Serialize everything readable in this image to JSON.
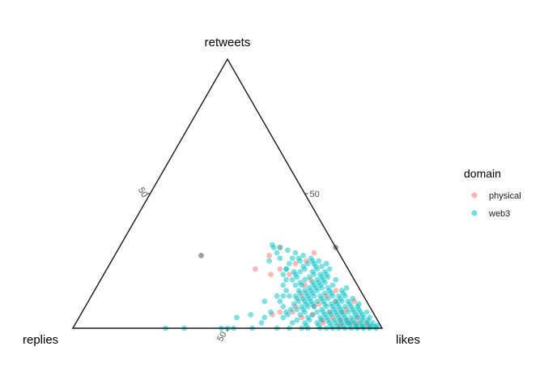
{
  "chart_data": {
    "type": "scatter",
    "subtype": "ternary",
    "vertices": {
      "top": "retweets",
      "left": "replies",
      "right": "likes"
    },
    "axis_ticks": {
      "retweets": [
        50
      ],
      "replies": [
        50
      ],
      "likes": [
        50
      ]
    },
    "tick_labels": {
      "retweets": "50",
      "replies": "50",
      "likes": "50"
    },
    "grid": false,
    "legend": {
      "title": "domain",
      "placement": "right",
      "entries": [
        {
          "name": "physical",
          "color": "#F8766D"
        },
        {
          "name": "web3",
          "color": "#00BFC4"
        }
      ]
    },
    "point_alpha": 0.5,
    "series": [
      {
        "name": "physical",
        "color": "#F8766D",
        "points": [
          [
            20,
            26,
            54
          ],
          [
            22,
            30,
            48
          ],
          [
            25,
            12,
            63
          ],
          [
            28,
            8,
            64
          ],
          [
            30,
            18,
            52
          ],
          [
            22,
            22,
            56
          ],
          [
            18,
            14,
            68
          ],
          [
            16,
            17,
            67
          ],
          [
            20,
            20,
            60
          ],
          [
            12,
            12,
            76
          ],
          [
            14,
            8,
            78
          ],
          [
            10,
            10,
            80
          ],
          [
            6,
            30,
            64
          ],
          [
            5,
            33,
            62
          ],
          [
            8,
            18,
            74
          ],
          [
            5,
            20,
            75
          ],
          [
            4,
            14,
            82
          ],
          [
            3,
            10,
            87
          ],
          [
            7,
            8,
            85
          ],
          [
            4,
            6,
            90
          ],
          [
            2,
            18,
            80
          ],
          [
            10,
            4,
            86
          ],
          [
            6,
            14,
            80
          ],
          [
            2,
            9,
            89
          ],
          [
            12,
            20,
            68
          ],
          [
            8,
            24,
            68
          ],
          [
            6,
            26,
            68
          ],
          [
            3,
            12,
            85
          ],
          [
            2,
            7,
            91
          ],
          [
            1,
            4,
            95
          ],
          [
            4,
            24,
            72
          ],
          [
            3,
            18,
            79
          ],
          [
            1,
            13,
            86
          ],
          [
            2,
            4,
            94
          ],
          [
            6,
            10,
            84
          ],
          [
            9,
            16,
            75
          ],
          [
            27,
            23,
            50
          ],
          [
            24,
            16,
            60
          ]
        ]
      },
      {
        "name": "web3",
        "color": "#00BFC4",
        "points": [
          [
            0,
            70,
            30
          ],
          [
            0,
            64,
            36
          ],
          [
            0,
            52,
            48
          ],
          [
            0,
            48,
            52
          ],
          [
            0,
            50,
            50
          ],
          [
            0,
            42,
            58
          ],
          [
            2,
            38,
            60
          ],
          [
            4,
            36,
            60
          ],
          [
            5,
            40,
            55
          ],
          [
            4,
            45,
            51
          ],
          [
            6,
            33,
            61
          ],
          [
            10,
            33,
            57
          ],
          [
            22,
            20,
            58
          ],
          [
            26,
            20,
            54
          ],
          [
            18,
            20,
            62
          ],
          [
            20,
            18,
            62
          ],
          [
            28,
            20,
            52
          ],
          [
            25,
            24,
            51
          ],
          [
            30,
            20,
            50
          ],
          [
            30,
            18,
            52
          ],
          [
            26,
            16,
            58
          ],
          [
            22,
            14,
            64
          ],
          [
            16,
            14,
            70
          ],
          [
            18,
            12,
            70
          ],
          [
            20,
            10,
            70
          ],
          [
            24,
            12,
            64
          ],
          [
            25,
            8,
            67
          ],
          [
            14,
            10,
            76
          ],
          [
            14,
            18,
            68
          ],
          [
            11,
            20,
            69
          ],
          [
            12,
            24,
            64
          ],
          [
            10,
            16,
            74
          ],
          [
            8,
            28,
            64
          ],
          [
            10,
            28,
            62
          ],
          [
            12,
            28,
            60
          ],
          [
            6,
            28,
            66
          ],
          [
            4,
            30,
            66
          ],
          [
            3,
            26,
            71
          ],
          [
            3,
            22,
            75
          ],
          [
            2,
            20,
            78
          ],
          [
            2,
            16,
            82
          ],
          [
            4,
            18,
            78
          ],
          [
            5,
            16,
            79
          ],
          [
            6,
            14,
            80
          ],
          [
            8,
            12,
            80
          ],
          [
            10,
            10,
            80
          ],
          [
            12,
            8,
            80
          ],
          [
            14,
            6,
            80
          ],
          [
            6,
            10,
            84
          ],
          [
            4,
            12,
            84
          ],
          [
            3,
            14,
            83
          ],
          [
            2,
            12,
            86
          ],
          [
            1,
            10,
            89
          ],
          [
            1,
            6,
            93
          ],
          [
            1,
            3,
            96
          ],
          [
            2,
            4,
            94
          ],
          [
            3,
            5,
            92
          ],
          [
            3,
            8,
            89
          ],
          [
            4,
            8,
            88
          ],
          [
            5,
            6,
            89
          ],
          [
            6,
            6,
            88
          ],
          [
            7,
            4,
            89
          ],
          [
            8,
            4,
            88
          ],
          [
            9,
            3,
            88
          ],
          [
            6,
            2,
            92
          ],
          [
            4,
            2,
            94
          ],
          [
            2,
            2,
            96
          ],
          [
            1,
            1,
            98
          ],
          [
            0.5,
            2,
            97.5
          ],
          [
            0.5,
            4,
            95.5
          ],
          [
            0.5,
            6,
            93.5
          ],
          [
            0.5,
            8,
            91.5
          ],
          [
            1,
            8,
            91
          ],
          [
            1,
            12,
            87
          ],
          [
            2,
            8,
            90
          ],
          [
            2,
            6,
            92
          ],
          [
            3,
            3,
            94
          ],
          [
            4,
            4,
            92
          ],
          [
            5,
            4,
            91
          ],
          [
            6,
            4,
            90
          ],
          [
            7,
            6,
            87
          ],
          [
            8,
            6,
            86
          ],
          [
            9,
            6,
            85
          ],
          [
            10,
            6,
            84
          ],
          [
            11,
            8,
            81
          ],
          [
            12,
            10,
            78
          ],
          [
            13,
            12,
            75
          ],
          [
            9,
            10,
            81
          ],
          [
            8,
            10,
            82
          ],
          [
            7,
            10,
            83
          ],
          [
            5,
            10,
            85
          ],
          [
            4,
            10,
            86
          ],
          [
            3,
            10,
            87
          ],
          [
            2,
            10,
            88
          ],
          [
            6,
            12,
            82
          ],
          [
            7,
            12,
            81
          ],
          [
            8,
            14,
            78
          ],
          [
            9,
            14,
            77
          ],
          [
            10,
            14,
            76
          ],
          [
            11,
            14,
            75
          ],
          [
            12,
            14,
            74
          ],
          [
            7,
            16,
            77
          ],
          [
            8,
            18,
            74
          ],
          [
            9,
            18,
            73
          ],
          [
            10,
            20,
            70
          ],
          [
            6,
            18,
            76
          ],
          [
            5,
            20,
            75
          ],
          [
            6,
            22,
            72
          ],
          [
            7,
            22,
            71
          ],
          [
            8,
            22,
            70
          ],
          [
            9,
            24,
            67
          ],
          [
            4,
            22,
            74
          ],
          [
            5,
            24,
            71
          ],
          [
            7,
            24,
            69
          ],
          [
            3,
            18,
            79
          ],
          [
            4,
            16,
            80
          ],
          [
            2,
            14,
            84
          ],
          [
            3,
            16,
            81
          ],
          [
            5,
            14,
            81
          ],
          [
            6,
            16,
            78
          ],
          [
            16,
            18,
            66
          ],
          [
            18,
            16,
            66
          ],
          [
            16,
            20,
            64
          ],
          [
            14,
            20,
            66
          ],
          [
            15,
            16,
            69
          ],
          [
            17,
            14,
            69
          ],
          [
            19,
            14,
            67
          ],
          [
            21,
            16,
            63
          ],
          [
            12,
            16,
            72
          ],
          [
            13,
            18,
            69
          ],
          [
            15,
            12,
            73
          ],
          [
            17,
            10,
            73
          ],
          [
            19,
            8,
            73
          ],
          [
            16,
            8,
            76
          ],
          [
            13,
            6,
            81
          ],
          [
            11,
            4,
            85
          ],
          [
            15,
            4,
            81
          ],
          [
            18,
            6,
            76
          ],
          [
            22,
            6,
            72
          ],
          [
            24,
            6,
            70
          ],
          [
            20,
            8,
            72
          ],
          [
            23,
            10,
            67
          ],
          [
            21,
            12,
            67
          ],
          [
            0,
            20,
            80
          ],
          [
            0,
            16,
            84
          ],
          [
            0,
            30,
            70
          ],
          [
            0,
            34,
            66
          ],
          [
            0,
            26,
            74
          ],
          [
            0,
            24,
            76
          ],
          [
            0,
            12,
            88
          ],
          [
            0,
            10,
            90
          ],
          [
            0,
            8,
            92
          ],
          [
            0,
            6,
            94
          ],
          [
            0,
            4,
            96
          ],
          [
            0,
            2,
            98
          ],
          [
            0,
            14,
            86
          ],
          [
            0,
            18,
            82
          ],
          [
            1,
            16,
            83
          ],
          [
            1,
            20,
            79
          ],
          [
            2,
            24,
            74
          ],
          [
            2,
            28,
            70
          ],
          [
            1,
            24,
            75
          ],
          [
            5,
            28,
            67
          ],
          [
            7,
            26,
            67
          ],
          [
            8,
            20,
            72
          ],
          [
            9,
            20,
            71
          ],
          [
            10,
            22,
            68
          ],
          [
            11,
            22,
            67
          ],
          [
            12,
            22,
            66
          ],
          [
            13,
            20,
            67
          ],
          [
            14,
            14,
            72
          ],
          [
            15,
            14,
            71
          ],
          [
            16,
            12,
            72
          ],
          [
            18,
            10,
            72
          ],
          [
            20,
            12,
            68
          ],
          [
            22,
            10,
            68
          ],
          [
            24,
            10,
            66
          ],
          [
            26,
            10,
            64
          ],
          [
            27,
            12,
            61
          ],
          [
            25,
            14,
            61
          ],
          [
            23,
            14,
            63
          ],
          [
            21,
            18,
            61
          ],
          [
            19,
            18,
            63
          ],
          [
            17,
            18,
            65
          ],
          [
            13,
            16,
            71
          ],
          [
            11,
            18,
            71
          ],
          [
            10,
            18,
            72
          ],
          [
            12,
            18,
            70
          ],
          [
            14,
            16,
            70
          ],
          [
            6,
            8,
            86
          ],
          [
            8,
            8,
            84
          ],
          [
            10,
            8,
            82
          ],
          [
            12,
            6,
            82
          ],
          [
            4,
            6,
            90
          ],
          [
            2,
            10,
            88
          ],
          [
            3,
            12,
            85
          ],
          [
            1,
            14,
            85
          ],
          [
            5,
            12,
            83
          ],
          [
            9,
            12,
            79
          ],
          [
            11,
            12,
            77
          ],
          [
            13,
            10,
            77
          ],
          [
            15,
            10,
            75
          ],
          [
            17,
            12,
            71
          ],
          [
            19,
            10,
            71
          ],
          [
            21,
            8,
            71
          ],
          [
            23,
            8,
            69
          ],
          [
            25,
            10,
            65
          ],
          [
            26,
            14,
            60
          ],
          [
            28,
            14,
            58
          ],
          [
            29,
            16,
            55
          ],
          [
            31,
            20,
            49
          ],
          [
            24,
            18,
            58
          ],
          [
            22,
            20,
            58
          ],
          [
            20,
            22,
            58
          ],
          [
            18,
            22,
            60
          ],
          [
            16,
            24,
            60
          ],
          [
            14,
            24,
            62
          ],
          [
            12,
            26,
            62
          ]
        ]
      }
    ],
    "markers": [
      {
        "vertex": "retweets",
        "count": 30
      }
    ]
  }
}
